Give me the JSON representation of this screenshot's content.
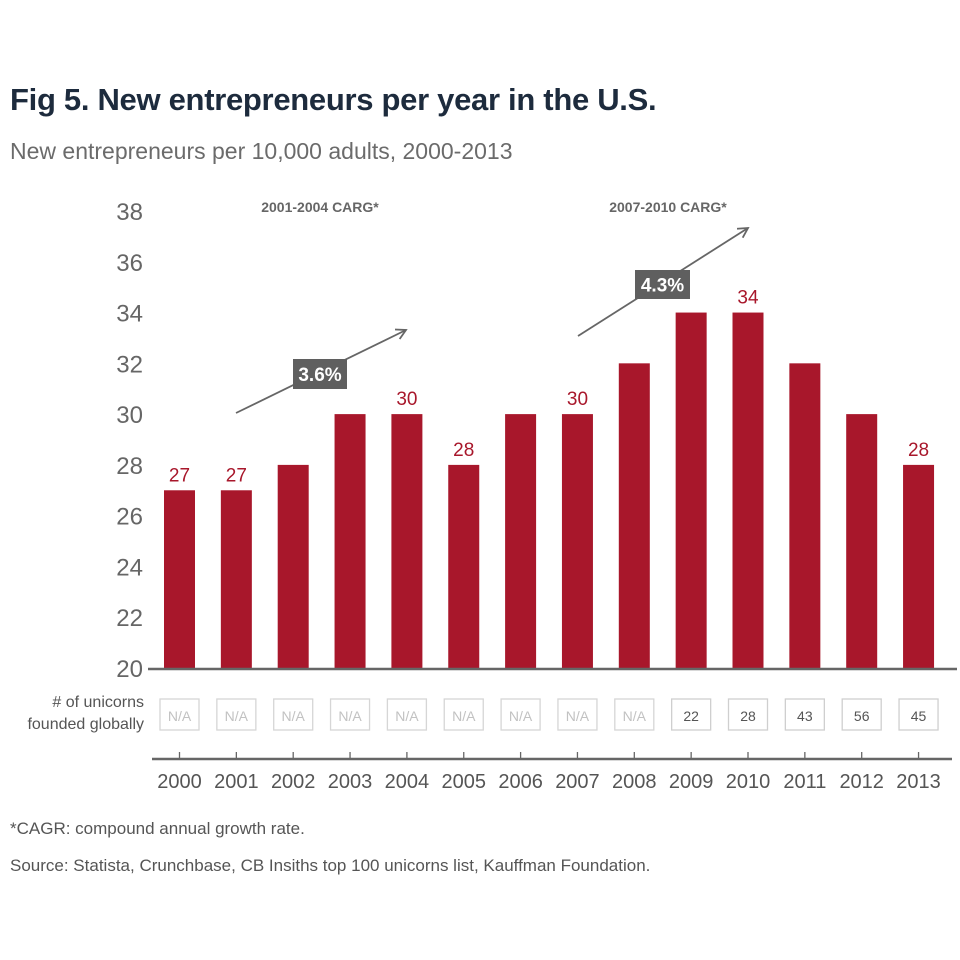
{
  "title": "Fig 5. New entrepreneurs per year in the U.S.",
  "subtitle": "New entrepreneurs per 10,000 adults, 2000-2013",
  "footnote": "*CAGR: compound annual growth rate.",
  "source": "Source: Statista, Crunchbase, CB Insiths top 100 unicorns list, Kauffman Foundation.",
  "colors": {
    "bar": "#a8172b",
    "label": "#a8172b",
    "annotation_box": "#5f5f5f",
    "axis": "#555555",
    "title": "#1d2b3d"
  },
  "chart_data": {
    "type": "bar",
    "title": "Fig 5. New entrepreneurs per year in the U.S.",
    "subtitle": "New entrepreneurs per 10,000 adults, 2000-2013",
    "xlabel": "",
    "ylabel": "New entrepreneurs per 10,000 adults",
    "ylim": [
      20,
      38
    ],
    "yticks": [
      20,
      22,
      24,
      26,
      28,
      30,
      32,
      34,
      36,
      38
    ],
    "grid": false,
    "categories": [
      "2000",
      "2001",
      "2002",
      "2003",
      "2004",
      "2005",
      "2006",
      "2007",
      "2008",
      "2009",
      "2010",
      "2011",
      "2012",
      "2013"
    ],
    "values": [
      27,
      27,
      28,
      30,
      30,
      28,
      30,
      30,
      32,
      34,
      34,
      32,
      30,
      28
    ],
    "data_labels_shown_for": [
      "2000",
      "2001",
      "2004",
      "2005",
      "2007",
      "2010",
      "2013"
    ],
    "unicorn_row": {
      "label_line1": "# of unicorns",
      "label_line2": "founded globally",
      "values": [
        "N/A",
        "N/A",
        "N/A",
        "N/A",
        "N/A",
        "N/A",
        "N/A",
        "N/A",
        "N/A",
        "22",
        "28",
        "43",
        "56",
        "45"
      ]
    },
    "annotations": [
      {
        "heading": "2001-2004 CARG*",
        "value": "3.6%",
        "from": "2001",
        "to": "2004"
      },
      {
        "heading": "2007-2010 CARG*",
        "value": "4.3%",
        "from": "2007",
        "to": "2010"
      }
    ]
  }
}
